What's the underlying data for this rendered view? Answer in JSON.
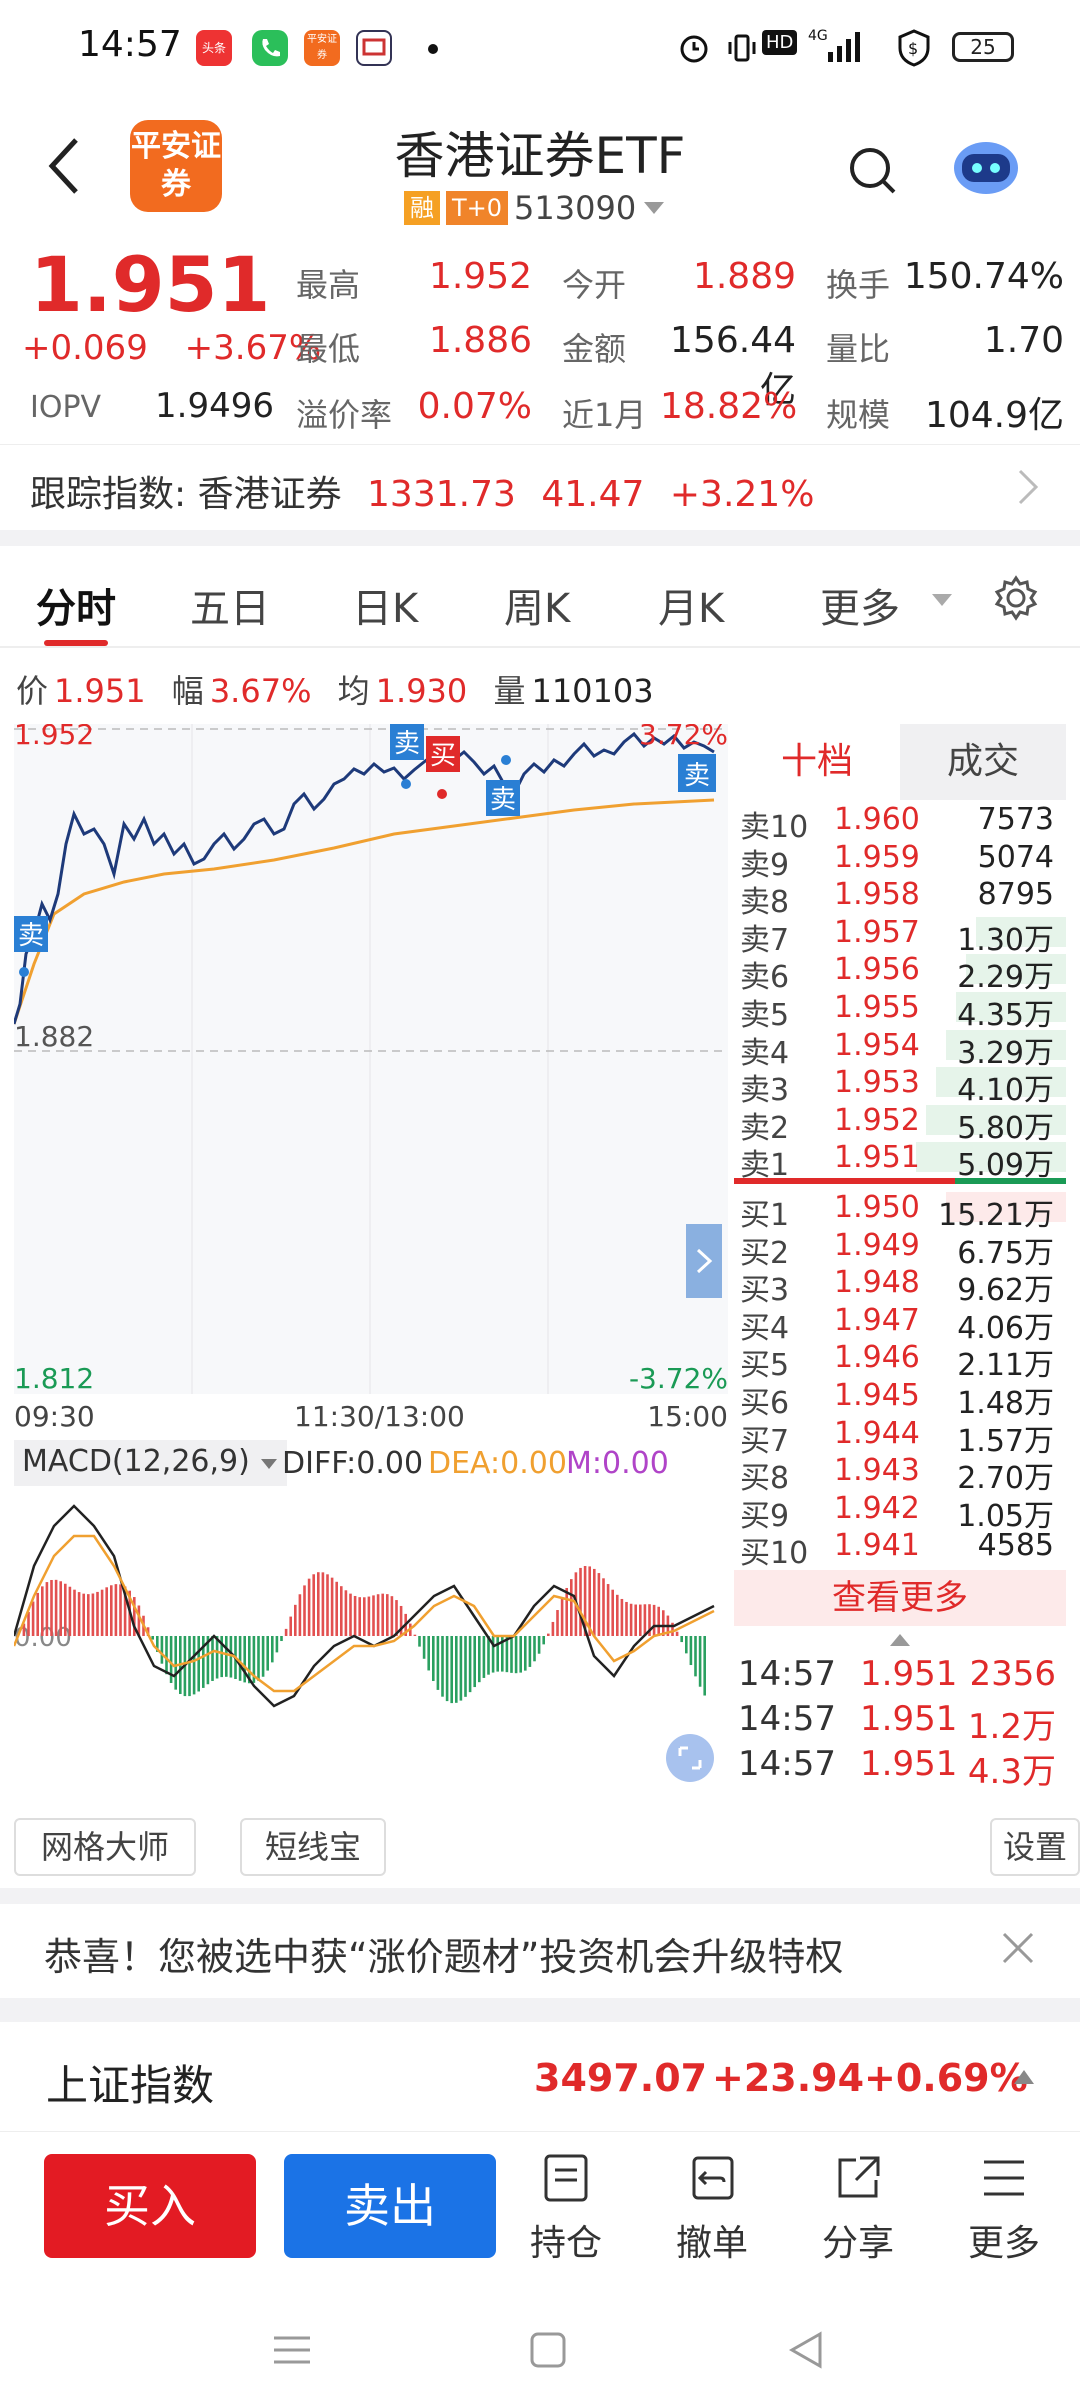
{
  "status_bar": {
    "time": "14:57",
    "apps": [
      "头条",
      "",
      "平安证券",
      ""
    ],
    "network": "4G",
    "battery": "25"
  },
  "header": {
    "logo_text": "平安证券",
    "title": "香港证券ETF",
    "tag_margin": "融",
    "tag_t0": "T+0",
    "code": "513090"
  },
  "quote": {
    "price": "1.951",
    "change": "+0.069",
    "change_pct": "+3.67%",
    "iopv_label": "IOPV",
    "iopv": "1.9496",
    "stats": [
      {
        "label": "最高",
        "value": "1.952",
        "color": "red"
      },
      {
        "label": "今开",
        "value": "1.889",
        "color": "red"
      },
      {
        "label": "换手",
        "value": "150.74%",
        "color": "black"
      },
      {
        "label": "最低",
        "value": "1.886",
        "color": "red"
      },
      {
        "label": "金额",
        "value": "156.44亿",
        "color": "black"
      },
      {
        "label": "量比",
        "value": "1.70",
        "color": "black"
      },
      {
        "label": "溢价率",
        "value": "0.07%",
        "color": "red"
      },
      {
        "label": "近1月",
        "value": "18.82%",
        "color": "red"
      },
      {
        "label": "规模",
        "value": "104.9亿",
        "color": "black"
      }
    ]
  },
  "tracking": {
    "label": "跟踪指数: 香港证券",
    "value": "1331.73",
    "change": "41.47",
    "pct": "+3.21%"
  },
  "tabs": [
    "分时",
    "五日",
    "日K",
    "周K",
    "月K",
    "更多"
  ],
  "info_line": {
    "price_label": "价",
    "price": "1.951",
    "amp_label": "幅",
    "amp": "3.67%",
    "avg_label": "均",
    "avg": "1.930",
    "vol_label": "量",
    "vol": "110103"
  },
  "chart": {
    "y_top": "1.952",
    "y_mid": "1.882",
    "y_bottom": "1.812",
    "pct_top": "3.72%",
    "pct_bottom": "-3.72%",
    "x_start": "09:30",
    "x_mid": "11:30/13:00",
    "x_end": "15:00",
    "markers": [
      "卖",
      "买",
      "卖",
      "卖",
      "卖"
    ],
    "price_color": "#1e3a7a",
    "avg_color": "#f0a030"
  },
  "macd": {
    "label": "MACD(12,26,9)",
    "diff": "DIFF:0.00",
    "dea": "DEA:0.00",
    "m": "M:0.00",
    "zero": "0.00"
  },
  "order_book": {
    "tab_active": "十档",
    "tab_other": "成交",
    "sells": [
      {
        "label": "卖10",
        "price": "1.960",
        "qty": "7573"
      },
      {
        "label": "卖9",
        "price": "1.959",
        "qty": "5074"
      },
      {
        "label": "卖8",
        "price": "1.958",
        "qty": "8795"
      },
      {
        "label": "卖7",
        "price": "1.957",
        "qty": "1.30万"
      },
      {
        "label": "卖6",
        "price": "1.956",
        "qty": "2.29万"
      },
      {
        "label": "卖5",
        "price": "1.955",
        "qty": "4.35万"
      },
      {
        "label": "卖4",
        "price": "1.954",
        "qty": "3.29万"
      },
      {
        "label": "卖3",
        "price": "1.953",
        "qty": "4.10万"
      },
      {
        "label": "卖2",
        "price": "1.952",
        "qty": "5.80万"
      },
      {
        "label": "卖1",
        "price": "1.951",
        "qty": "5.09万"
      }
    ],
    "buys": [
      {
        "label": "买1",
        "price": "1.950",
        "qty": "15.21万"
      },
      {
        "label": "买2",
        "price": "1.949",
        "qty": "6.75万"
      },
      {
        "label": "买3",
        "price": "1.948",
        "qty": "9.62万"
      },
      {
        "label": "买4",
        "price": "1.947",
        "qty": "4.06万"
      },
      {
        "label": "买5",
        "price": "1.946",
        "qty": "2.11万"
      },
      {
        "label": "买6",
        "price": "1.945",
        "qty": "1.48万"
      },
      {
        "label": "买7",
        "price": "1.944",
        "qty": "1.57万"
      },
      {
        "label": "买8",
        "price": "1.943",
        "qty": "2.70万"
      },
      {
        "label": "买9",
        "price": "1.942",
        "qty": "1.05万"
      },
      {
        "label": "买10",
        "price": "1.941",
        "qty": "4585"
      }
    ],
    "more": "查看更多",
    "ticks": [
      {
        "time": "14:57",
        "price": "1.951",
        "vol": "2356"
      },
      {
        "time": "14:57",
        "price": "1.951",
        "vol": "1.2万"
      },
      {
        "time": "14:57",
        "price": "1.951",
        "vol": "4.3万"
      }
    ]
  },
  "tools": {
    "grid": "网格大师",
    "short": "短线宝",
    "settings": "设置"
  },
  "notice": {
    "text": "恭喜！您被选中获“涨价题材”投资机会升级特权"
  },
  "index": {
    "name": "上证指数",
    "value": "3497.07",
    "change": "+23.94",
    "pct": "+0.69%"
  },
  "bottom": {
    "buy": "买入",
    "sell": "卖出",
    "position": "持仓",
    "cancel": "撤单",
    "share": "分享",
    "more": "更多"
  }
}
